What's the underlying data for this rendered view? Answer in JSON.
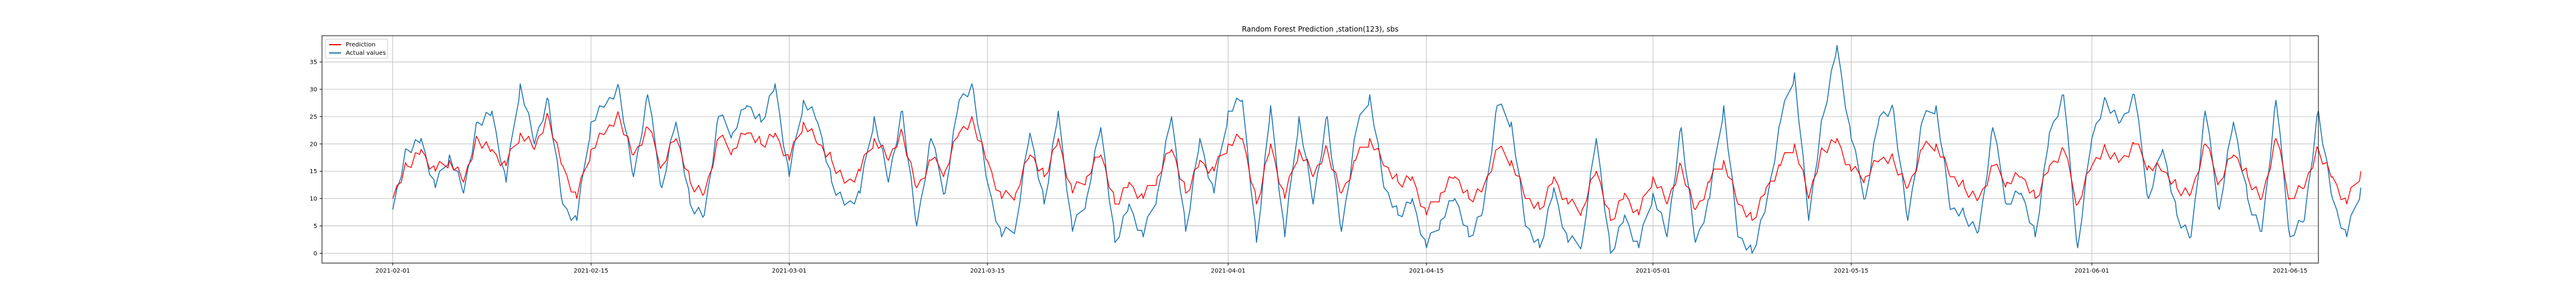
{
  "chart_data": {
    "type": "line",
    "title": "Random Forest Prediction ,station(123), sbs",
    "xlabel": "",
    "ylabel": "",
    "x_type": "date",
    "xlim": [
      "2021-01-27",
      "2021-06-17"
    ],
    "ylim": [
      -1.8,
      39.8
    ],
    "grid": true,
    "legend": "top-left",
    "xticks": [
      "2021-02-01",
      "2021-02-15",
      "2021-03-01",
      "2021-03-15",
      "2021-04-01",
      "2021-04-15",
      "2021-05-01",
      "2021-05-15",
      "2021-06-01",
      "2021-06-15"
    ],
    "yticks": [
      0,
      5,
      10,
      15,
      20,
      25,
      30,
      35
    ],
    "series": [
      {
        "name": "Prediction",
        "color": "#ff0000",
        "x_start": "2021-02-01",
        "values": [
          10,
          16,
          19,
          15,
          17,
          13,
          21,
          19,
          16,
          22,
          19,
          25,
          16,
          10,
          19,
          22,
          25,
          18,
          23,
          16,
          21,
          13,
          11,
          21,
          19,
          22,
          20,
          22,
          17,
          24,
          20,
          17,
          13,
          15,
          21,
          17,
          22,
          12,
          17,
          15,
          22,
          24,
          17,
          10,
          11,
          18,
          14,
          21,
          11,
          14,
          18,
          9,
          13,
          10,
          14,
          19,
          11,
          17,
          15,
          20,
          21,
          9,
          20,
          10,
          19,
          14,
          19,
          11,
          17,
          21,
          16,
          13,
          14,
          7,
          11,
          14,
          10,
          12,
          19,
          17,
          10,
          8,
          14,
          9,
          8,
          15,
          6,
          11,
          7,
          14,
          9,
          16,
          8,
          13,
          17,
          9,
          6,
          12,
          16,
          20,
          10,
          19,
          21,
          15,
          14,
          17,
          17,
          12,
          19,
          20,
          14,
          12,
          10,
          16,
          13,
          14,
          10,
          16,
          19,
          9,
          16,
          19,
          17,
          20,
          16,
          15,
          12,
          11,
          20,
          13,
          18,
          14,
          10,
          21,
          10,
          12,
          19,
          14,
          9,
          15
        ],
        "data_labels": []
      },
      {
        "name": "Actual values",
        "color": "#1f77b4",
        "x_start": "2021-02-01",
        "values": [
          8,
          19,
          21,
          12,
          18,
          11,
          24,
          26,
          13,
          31,
          20,
          28,
          9,
          6,
          24,
          27,
          30,
          14,
          29,
          12,
          24,
          9,
          7,
          25,
          22,
          27,
          24,
          31,
          14,
          28,
          24,
          13,
          9,
          11,
          25,
          13,
          26,
          5,
          21,
          11,
          28,
          30,
          13,
          3,
          5,
          22,
          9,
          26,
          4,
          10,
          23,
          2,
          9,
          3,
          11,
          25,
          4,
          21,
          11,
          26,
          28,
          2,
          27,
          3,
          25,
          9,
          25,
          4,
          22,
          29,
          12,
          7,
          10,
          1,
          6,
          10,
          3,
          8,
          27,
          24,
          5,
          1,
          12,
          2,
          2,
          21,
          0,
          7,
          1,
          11,
          3,
          23,
          2,
          10,
          27,
          3,
          0,
          9,
          24,
          33,
          6,
          25,
          38,
          21,
          10,
          25,
          26,
          6,
          24,
          27,
          8,
          7,
          4,
          23,
          9,
          11,
          3,
          22,
          29,
          1,
          21,
          28,
          24,
          29,
          10,
          19,
          7,
          3,
          26,
          8,
          24,
          10,
          4,
          28,
          3,
          6,
          26,
          10,
          3,
          12
        ],
        "data_labels": []
      }
    ]
  }
}
